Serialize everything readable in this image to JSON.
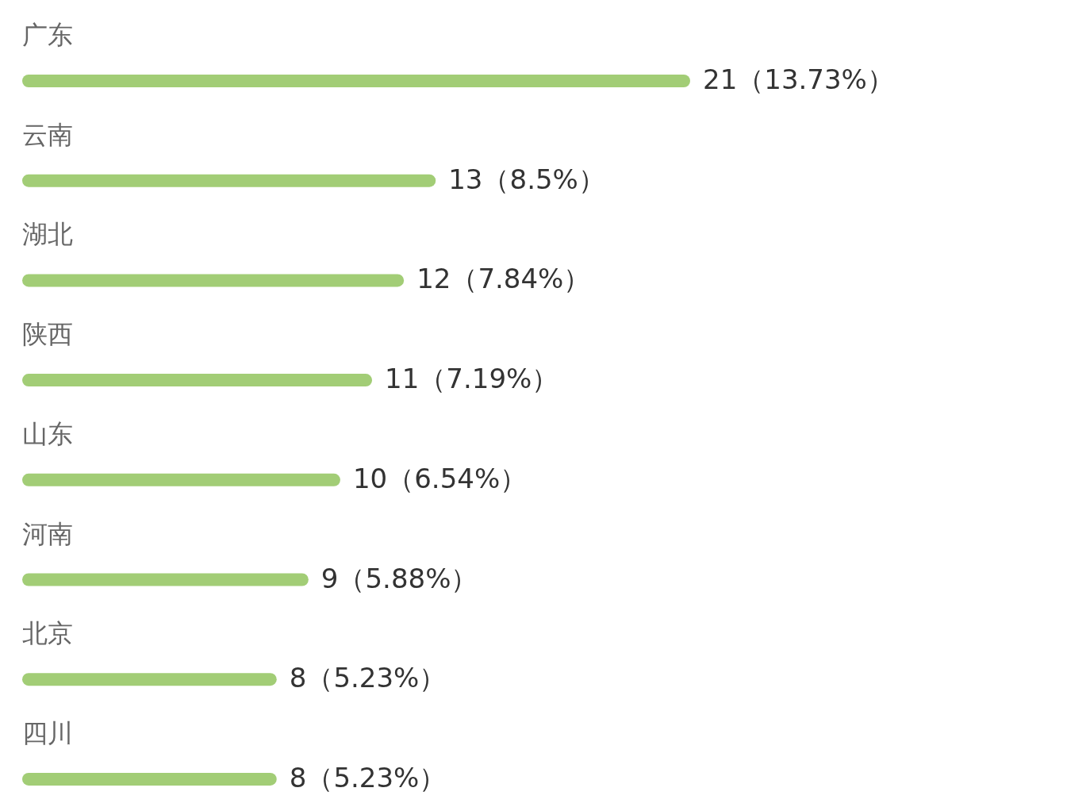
{
  "chart_data": {
    "type": "bar",
    "orientation": "horizontal",
    "categories": [
      "广东",
      "云南",
      "湖北",
      "陕西",
      "山东",
      "河南",
      "北京",
      "四川"
    ],
    "values": [
      21,
      13,
      12,
      11,
      10,
      9,
      8,
      8
    ],
    "value_labels": [
      "21（13.73%）",
      "13（8.5%）",
      "12（7.84%）",
      "11（7.19%）",
      "10（6.54%）",
      "9（5.88%）",
      "8（5.23%）",
      "8（5.23%）"
    ],
    "color": "#a2cd76"
  }
}
